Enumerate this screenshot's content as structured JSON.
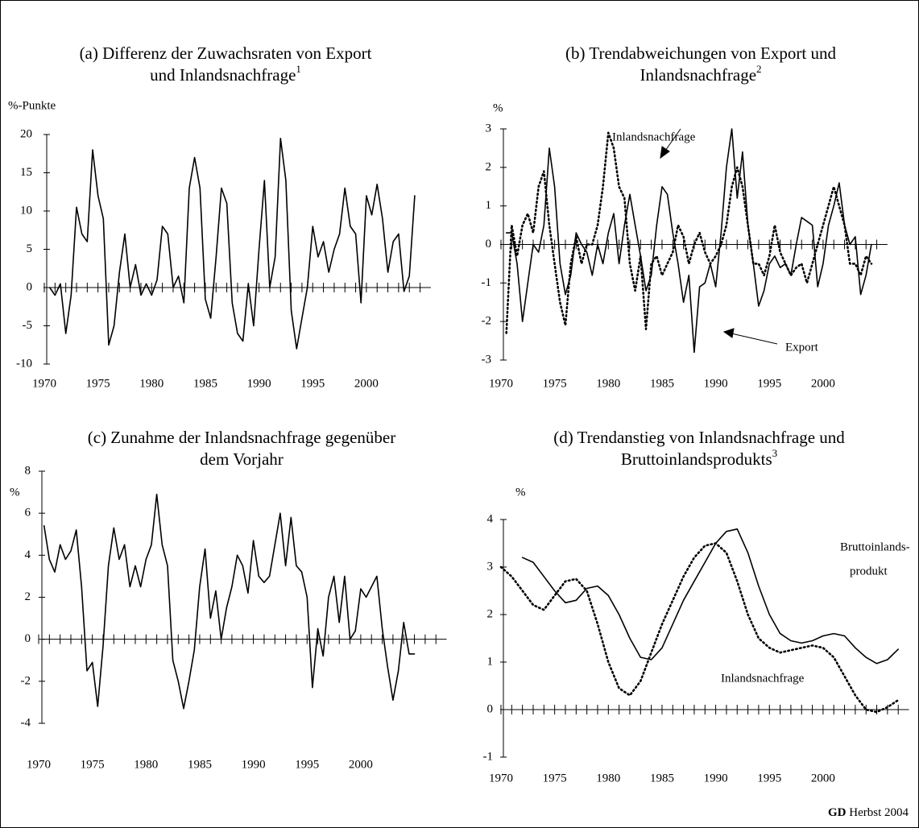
{
  "chart_data": [
    {
      "type": "line",
      "title": [
        "(a) Differenz der Zuwachsraten von Export",
        "und Inlandsnachfrage"
      ],
      "title_note": "1",
      "y_label": "%-Punkte",
      "x": [
        1970.5,
        1971,
        1971.5,
        1972,
        1972.5,
        1973,
        1973.5,
        1974,
        1974.5,
        1975,
        1975.5,
        1976,
        1976.5,
        1977,
        1977.5,
        1978,
        1978.5,
        1979,
        1979.5,
        1980,
        1980.5,
        1981,
        1981.5,
        1982,
        1982.5,
        1983,
        1983.5,
        1984,
        1984.5,
        1985,
        1985.5,
        1986,
        1986.5,
        1987,
        1987.5,
        1988,
        1988.5,
        1989,
        1989.5,
        1990,
        1990.5,
        1991,
        1991.5,
        1992,
        1992.5,
        1993,
        1993.5,
        1994,
        1994.5,
        1995,
        1995.5,
        1996,
        1996.5,
        1997,
        1997.5,
        1998,
        1998.5,
        1999,
        1999.5,
        2000,
        2000.5,
        2001,
        2001.5,
        2002,
        2002.5,
        2003,
        2003.5,
        2004,
        2004.5
      ],
      "values": [
        0,
        -1,
        0.5,
        -6,
        -1,
        10.5,
        7,
        6,
        18,
        12,
        9,
        -7.5,
        -5,
        2,
        7,
        0,
        3,
        -1,
        0.5,
        -1,
        1,
        8,
        7,
        0,
        1.5,
        -2,
        13,
        17,
        13,
        -1.5,
        -4,
        4,
        13,
        11,
        -2,
        -6,
        -7,
        0.5,
        -5,
        5,
        14,
        0,
        4,
        19.5,
        14,
        -3,
        -8,
        -4,
        0,
        8,
        4,
        6,
        2,
        5,
        7,
        13,
        8,
        7,
        -2,
        12,
        9.5,
        13.5,
        9,
        2,
        6,
        7,
        -0.5,
        1.5,
        12
      ],
      "color": "#000000",
      "style": "solid",
      "xlim": [
        1970,
        2006
      ],
      "ylim": [
        -10,
        20
      ],
      "xticks": [
        1970,
        1975,
        1980,
        1985,
        1990,
        1995,
        2000
      ],
      "yticks": [
        -10,
        -5,
        0,
        5,
        10,
        15,
        20
      ],
      "xminor": [
        1971,
        1972,
        1973,
        1974,
        1976,
        1977,
        1978,
        1979,
        1981,
        1982,
        1983,
        1984,
        1986,
        1987,
        1988,
        1989,
        1991,
        1992,
        1993,
        1994,
        1996,
        1997,
        1998,
        1999,
        2001,
        2002,
        2003,
        2004,
        2005
      ]
    },
    {
      "type": "line",
      "title": [
        "(b) Trendabweichungen von Export und",
        "Inlandsnachfrage"
      ],
      "title_note": "2",
      "y_label": "%",
      "x": [
        1970.5,
        1971,
        1971.5,
        1972,
        1972.5,
        1973,
        1973.5,
        1974,
        1974.5,
        1975,
        1975.5,
        1976,
        1976.5,
        1977,
        1977.5,
        1978,
        1978.5,
        1979,
        1979.5,
        1980,
        1980.5,
        1981,
        1981.5,
        1982,
        1982.5,
        1983,
        1983.5,
        1984,
        1984.5,
        1985,
        1985.5,
        1986,
        1986.5,
        1987,
        1987.5,
        1988,
        1988.5,
        1989,
        1989.5,
        1990,
        1990.5,
        1991,
        1991.5,
        1992,
        1992.5,
        1993,
        1993.5,
        1994,
        1994.5,
        1995,
        1995.5,
        1996,
        1996.5,
        1997,
        1997.5,
        1998,
        1998.5,
        1999,
        1999.5,
        2000,
        2000.5,
        2001,
        2001.5,
        2002,
        2002.5,
        2003,
        2003.5,
        2004,
        2004.5
      ],
      "series": [
        {
          "name": "Export",
          "color": "#000000",
          "style": "solid",
          "values": [
            0.3,
            0.3,
            -0.5,
            -2,
            -1,
            0,
            -0.2,
            0.5,
            2.5,
            1.5,
            -0.5,
            -1.3,
            -0.8,
            0.3,
            0,
            -0.2,
            -0.8,
            0,
            -0.5,
            0.3,
            0.8,
            -0.5,
            0.5,
            1.3,
            0.5,
            -0.3,
            -1.2,
            -0.8,
            0.5,
            1.5,
            1.3,
            0.3,
            -0.5,
            -1.5,
            -0.8,
            -2.8,
            -1.1,
            -1,
            -0.5,
            -1.1,
            0.3,
            2,
            3,
            1.2,
            2.4,
            0.5,
            -0.5,
            -1.6,
            -1.2,
            -0.5,
            -0.3,
            -0.6,
            -0.5,
            -0.8,
            0,
            0.7,
            0.6,
            0.5,
            -1.1,
            -0.5,
            0.5,
            1,
            1.6,
            0.5,
            0,
            0.2,
            -1.3,
            -0.8,
            0
          ]
        },
        {
          "name": "Inlandsnachfrage",
          "color": "#000000",
          "style": "dotted",
          "values": [
            -2.3,
            0.5,
            -0.3,
            0.5,
            0.8,
            0.3,
            1.5,
            1.9,
            0.5,
            -0.5,
            -1.5,
            -2.1,
            -0.5,
            0.2,
            -0.5,
            0,
            0,
            0.5,
            1.5,
            2.9,
            2.5,
            1.5,
            1.2,
            -0.5,
            -1.2,
            -0.3,
            -2.2,
            -0.5,
            -0.3,
            -0.8,
            -0.5,
            -0.2,
            0.5,
            0.2,
            -0.5,
            0,
            0.3,
            -0.2,
            -0.5,
            -0.3,
            0,
            0.5,
            1.5,
            2,
            1.5,
            0.5,
            -0.5,
            -0.5,
            -0.8,
            -0.3,
            0.5,
            -0.2,
            -0.5,
            -0.8,
            -0.6,
            -0.5,
            -1,
            -0.5,
            0,
            0.5,
            1,
            1.5,
            1,
            0.5,
            -0.5,
            -0.5,
            -0.8,
            -0.3,
            -0.5
          ]
        }
      ],
      "xlim": [
        1970,
        2006
      ],
      "ylim": [
        -3,
        3
      ],
      "xticks": [
        1970,
        1975,
        1980,
        1985,
        1990,
        1995,
        2000
      ],
      "yticks": [
        -3,
        -2,
        -1,
        0,
        1,
        2,
        3
      ],
      "xminor": [
        1971,
        1972,
        1973,
        1974,
        1976,
        1977,
        1978,
        1979,
        1981,
        1982,
        1983,
        1984,
        1986,
        1987,
        1988,
        1989,
        1991,
        1992,
        1993,
        1994,
        1996,
        1997,
        1998,
        1999,
        2001,
        2002,
        2003,
        2004,
        2005
      ]
    },
    {
      "type": "line",
      "title": [
        "(c) Zunahme der Inlandsnachfrage gegenüber",
        "dem Vorjahr"
      ],
      "y_label": "%",
      "x": [
        1970.5,
        1971,
        1971.5,
        1972,
        1972.5,
        1973,
        1973.5,
        1974,
        1974.5,
        1975,
        1975.5,
        1976,
        1976.5,
        1977,
        1977.5,
        1978,
        1978.5,
        1979,
        1979.5,
        1980,
        1980.5,
        1981,
        1981.5,
        1982,
        1982.5,
        1983,
        1983.5,
        1984,
        1984.5,
        1985,
        1985.5,
        1986,
        1986.5,
        1987,
        1987.5,
        1988,
        1988.5,
        1989,
        1989.5,
        1990,
        1990.5,
        1991,
        1991.5,
        1992,
        1992.5,
        1993,
        1993.5,
        1994,
        1994.5,
        1995,
        1995.5,
        1996,
        1996.5,
        1997,
        1997.5,
        1998,
        1998.5,
        1999,
        1999.5,
        2000,
        2000.5,
        2001,
        2001.5,
        2002,
        2002.5,
        2003,
        2003.5,
        2004,
        2004.5,
        2005
      ],
      "values": [
        5.4,
        3.8,
        3.2,
        4.5,
        3.8,
        4.2,
        5.2,
        2.5,
        -1.5,
        -1.1,
        -3.2,
        -0.3,
        3.5,
        5.3,
        3.8,
        4.5,
        2.5,
        3.5,
        2.5,
        3.8,
        4.5,
        6.9,
        4.5,
        3.5,
        -1,
        -2,
        -3.3,
        -2,
        -0.5,
        2.5,
        4.3,
        1,
        2.3,
        0,
        1.5,
        2.5,
        4,
        3.5,
        2.2,
        4.7,
        3,
        2.7,
        3,
        4.5,
        6,
        3.5,
        5.8,
        3.5,
        3.2,
        2,
        -2.3,
        0.5,
        -0.8,
        2,
        3,
        0.8,
        3,
        0,
        0.4,
        2.4,
        2,
        2.5,
        3,
        0.5,
        -1.3,
        -2.9,
        -1.5,
        0.8,
        -0.7,
        -0.7
      ],
      "color": "#000000",
      "style": "solid",
      "xlim": [
        1970,
        2008
      ],
      "ylim": [
        -4,
        8
      ],
      "xticks": [
        1970,
        1975,
        1980,
        1985,
        1990,
        1995,
        2000
      ],
      "yticks": [
        -4,
        -2,
        0,
        2,
        4,
        6,
        8
      ],
      "xminor": [
        1971,
        1972,
        1973,
        1974,
        1976,
        1977,
        1978,
        1979,
        1981,
        1982,
        1983,
        1984,
        1986,
        1987,
        1988,
        1989,
        1991,
        1992,
        1993,
        1994,
        1996,
        1997,
        1998,
        1999,
        2001,
        2002,
        2003,
        2004,
        2005,
        2006,
        2007
      ]
    },
    {
      "type": "line",
      "title": [
        "(d) Trendanstieg von Inlandsnachfrage und",
        "Bruttoinlandsprodukts"
      ],
      "title_note": "3",
      "y_label": "%",
      "series": [
        {
          "label_lines": [
            "Bruttoinlands-",
            "produkt"
          ],
          "color": "#000000",
          "style": "solid",
          "x": [
            1972,
            1973,
            1974,
            1975,
            1976,
            1977,
            1978,
            1979,
            1980,
            1981,
            1982,
            1983,
            1984,
            1985,
            1986,
            1987,
            1988,
            1989,
            1990,
            1991,
            1992,
            1993,
            1994,
            1995,
            1996,
            1997,
            1998,
            1999,
            2000,
            2001,
            2002,
            2003,
            2004,
            2005,
            2006,
            2007
          ],
          "values": [
            3.2,
            3.1,
            2.8,
            2.5,
            2.25,
            2.3,
            2.55,
            2.6,
            2.4,
            2.0,
            1.5,
            1.1,
            1.05,
            1.3,
            1.8,
            2.3,
            2.7,
            3.1,
            3.5,
            3.75,
            3.8,
            3.3,
            2.6,
            2.0,
            1.6,
            1.45,
            1.4,
            1.45,
            1.55,
            1.6,
            1.55,
            1.3,
            1.1,
            0.97,
            1.05,
            1.27
          ]
        },
        {
          "name": "Inlandsnachfrage",
          "color": "#000000",
          "style": "dotted",
          "x": [
            1970,
            1971,
            1972,
            1973,
            1974,
            1975,
            1976,
            1977,
            1978,
            1979,
            1980,
            1981,
            1982,
            1983,
            1984,
            1985,
            1986,
            1987,
            1988,
            1989,
            1990,
            1991,
            1992,
            1993,
            1994,
            1995,
            1996,
            1997,
            1998,
            1999,
            2000,
            2001,
            2002,
            2003,
            2004,
            2005,
            2006,
            2007
          ],
          "values": [
            3.0,
            2.8,
            2.5,
            2.2,
            2.1,
            2.4,
            2.7,
            2.75,
            2.5,
            1.8,
            1.0,
            0.45,
            0.3,
            0.6,
            1.2,
            1.8,
            2.3,
            2.8,
            3.2,
            3.45,
            3.5,
            3.3,
            2.7,
            2.0,
            1.5,
            1.3,
            1.2,
            1.25,
            1.3,
            1.35,
            1.3,
            1.1,
            0.7,
            0.3,
            0,
            -0.05,
            0.05,
            0.2
          ]
        }
      ],
      "xlim": [
        1970,
        2008
      ],
      "ylim": [
        -1,
        4
      ],
      "xticks": [
        1970,
        1975,
        1980,
        1985,
        1990,
        1995,
        2000
      ],
      "yticks": [
        -1,
        0,
        1,
        2,
        3,
        4
      ],
      "xminor": [
        1971,
        1972,
        1973,
        1974,
        1976,
        1977,
        1978,
        1979,
        1981,
        1982,
        1983,
        1984,
        1986,
        1987,
        1988,
        1989,
        1991,
        1992,
        1993,
        1994,
        1996,
        1997,
        1998,
        1999,
        2001,
        2002,
        2003,
        2004,
        2005,
        2006,
        2007
      ]
    }
  ],
  "footer": {
    "bold": "GD",
    "rest": "Herbst 2004"
  }
}
